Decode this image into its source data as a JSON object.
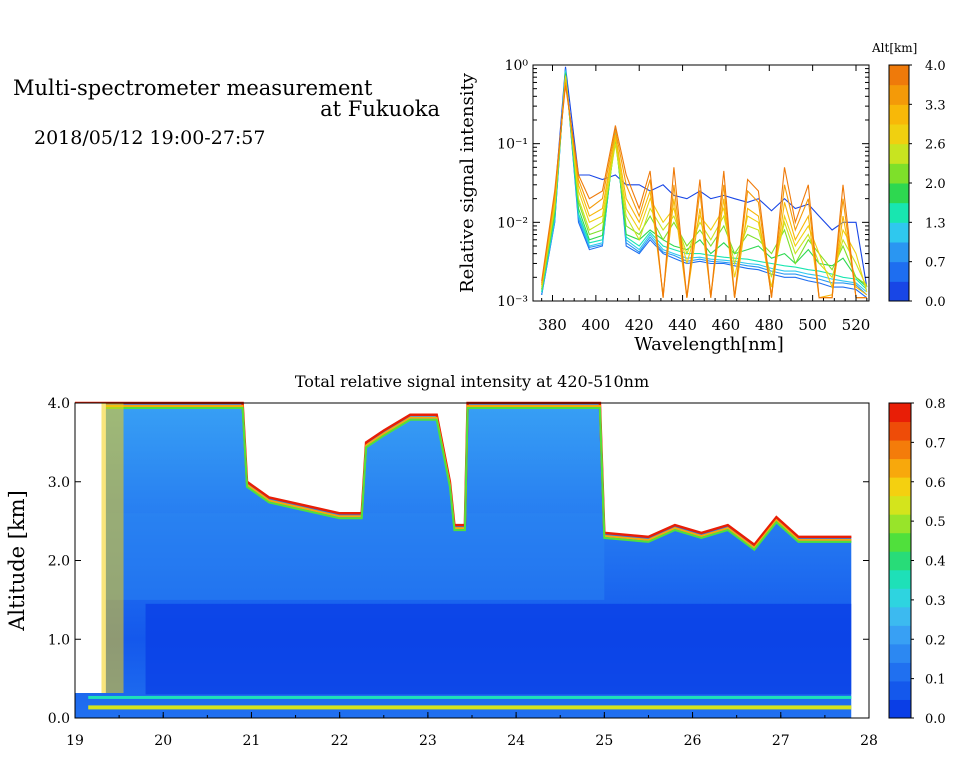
{
  "header": {
    "title_line1": "Multi-spectrometer measurement",
    "title_line2": "at Fukuoka",
    "timestamp": "2018/05/12 19:00-27:57"
  },
  "chart_data": [
    {
      "type": "line",
      "title": "",
      "xlabel": "Wavelength[nm]",
      "ylabel": "Relative signal intensity",
      "xlim": [
        371,
        526
      ],
      "ylim": [
        0.001,
        1
      ],
      "yscale": "log",
      "x_ticks": [
        380,
        400,
        420,
        440,
        460,
        480,
        500,
        520
      ],
      "y_ticks": [
        {
          "value": 0.001,
          "label": "10⁻³"
        },
        {
          "value": 0.01,
          "label": "10⁻²"
        },
        {
          "value": 0.1,
          "label": "10⁻¹"
        },
        {
          "value": 1,
          "label": "10⁰"
        }
      ],
      "x": [
        375,
        381,
        386,
        392,
        397,
        403,
        409,
        414,
        420,
        425,
        431,
        436,
        442,
        448,
        453,
        459,
        464,
        470,
        475,
        481,
        487,
        492,
        498,
        503,
        509,
        514,
        520,
        525
      ],
      "colorbar": {
        "label": "Alt[km]",
        "tick_labels": [
          "4.0",
          "3.3",
          "2.6",
          "2.0",
          "1.3",
          "0.7",
          "0.0"
        ],
        "range": [
          0,
          4
        ],
        "colors": [
          "#1846e6",
          "#1e6ef0",
          "#2a96f2",
          "#2fc8ee",
          "#18e6b0",
          "#2ed850",
          "#7ee02a",
          "#c8e420",
          "#f0d010",
          "#f8b808",
          "#f49a08",
          "#ef7a0a"
        ]
      },
      "series": [
        {
          "alt": 0.2,
          "color": "#1846e6",
          "values": [
            0.0012,
            0.02,
            0.95,
            0.04,
            0.04,
            0.035,
            0.04,
            0.03,
            0.03,
            0.025,
            0.03,
            0.022,
            0.02,
            0.025,
            0.02,
            0.022,
            0.02,
            0.018,
            0.02,
            0.014,
            0.02,
            0.015,
            0.017,
            0.012,
            0.008,
            0.01,
            0.01,
            0.0015
          ]
        },
        {
          "alt": 0.5,
          "color": "#1e6ef0",
          "values": [
            0.0012,
            0.01,
            0.9,
            0.01,
            0.0045,
            0.005,
            0.16,
            0.005,
            0.004,
            0.006,
            0.004,
            0.0035,
            0.003,
            0.0032,
            0.003,
            0.003,
            0.0028,
            0.0026,
            0.0025,
            0.0022,
            0.002,
            0.002,
            0.0018,
            0.0017,
            0.0015,
            0.0015,
            0.0014,
            0.0011
          ]
        },
        {
          "alt": 0.9,
          "color": "#2a96f2",
          "values": [
            0.0012,
            0.01,
            0.88,
            0.011,
            0.0048,
            0.0052,
            0.15,
            0.0055,
            0.0042,
            0.0065,
            0.0042,
            0.0038,
            0.0032,
            0.0034,
            0.0032,
            0.0031,
            0.003,
            0.0028,
            0.0027,
            0.0024,
            0.0022,
            0.0022,
            0.002,
            0.0019,
            0.0017,
            0.0017,
            0.0016,
            0.0012
          ]
        },
        {
          "alt": 1.2,
          "color": "#2fc8ee",
          "values": [
            0.0013,
            0.011,
            0.85,
            0.012,
            0.005,
            0.0055,
            0.14,
            0.006,
            0.0045,
            0.007,
            0.0045,
            0.004,
            0.0035,
            0.0036,
            0.0034,
            0.0033,
            0.0032,
            0.003,
            0.0029,
            0.0026,
            0.0024,
            0.0024,
            0.0022,
            0.0021,
            0.0019,
            0.0018,
            0.0017,
            0.0013
          ]
        },
        {
          "alt": 1.6,
          "color": "#18e6b0",
          "values": [
            0.0013,
            0.012,
            0.82,
            0.013,
            0.0055,
            0.006,
            0.13,
            0.0065,
            0.005,
            0.0075,
            0.005,
            0.0045,
            0.004,
            0.004,
            0.0038,
            0.0036,
            0.0035,
            0.0034,
            0.0032,
            0.003,
            0.0028,
            0.0027,
            0.0025,
            0.0024,
            0.0022,
            0.002,
            0.0019,
            0.0014
          ]
        },
        {
          "alt": 2.0,
          "color": "#2ed850",
          "values": [
            0.0014,
            0.013,
            0.78,
            0.015,
            0.006,
            0.0068,
            0.12,
            0.007,
            0.006,
            0.008,
            0.006,
            0.005,
            0.0045,
            0.006,
            0.004,
            0.0055,
            0.004,
            0.0045,
            0.005,
            0.0035,
            0.004,
            0.003,
            0.0045,
            0.003,
            0.0028,
            0.0035,
            0.002,
            0.0015
          ]
        },
        {
          "alt": 2.3,
          "color": "#7ee02a",
          "values": [
            0.0014,
            0.014,
            0.75,
            0.018,
            0.007,
            0.008,
            0.11,
            0.009,
            0.007,
            0.012,
            0.006,
            0.01,
            0.005,
            0.008,
            0.005,
            0.009,
            0.004,
            0.007,
            0.006,
            0.004,
            0.008,
            0.003,
            0.006,
            0.004,
            0.0025,
            0.005,
            0.002,
            0.0016
          ]
        },
        {
          "alt": 2.6,
          "color": "#c8e420",
          "values": [
            0.0015,
            0.016,
            0.72,
            0.02,
            0.008,
            0.01,
            0.1,
            0.012,
            0.006,
            0.015,
            0.008,
            0.012,
            0.004,
            0.01,
            0.006,
            0.012,
            0.003,
            0.009,
            0.008,
            0.002,
            0.01,
            0.004,
            0.007,
            0.003,
            0.002,
            0.006,
            0.003,
            0.0015
          ]
        },
        {
          "alt": 3.0,
          "color": "#f0d010",
          "values": [
            0.0016,
            0.018,
            0.7,
            0.025,
            0.01,
            0.012,
            0.12,
            0.015,
            0.008,
            0.02,
            0.01,
            0.015,
            0.003,
            0.012,
            0.008,
            0.015,
            0.002,
            0.012,
            0.01,
            0.0015,
            0.012,
            0.005,
            0.009,
            0.004,
            0.0015,
            0.008,
            0.004,
            0.0013
          ]
        },
        {
          "alt": 3.3,
          "color": "#f8b808",
          "values": [
            0.0016,
            0.02,
            0.65,
            0.03,
            0.012,
            0.015,
            0.13,
            0.02,
            0.01,
            0.025,
            0.0012,
            0.02,
            0.0011,
            0.015,
            0.0012,
            0.02,
            0.0011,
            0.015,
            0.012,
            0.0012,
            0.018,
            0.006,
            0.012,
            0.0011,
            0.0012,
            0.012,
            0.0015,
            0.0012
          ]
        },
        {
          "alt": 3.6,
          "color": "#f49a08",
          "values": [
            0.0017,
            0.022,
            0.6,
            0.035,
            0.015,
            0.02,
            0.15,
            0.03,
            0.012,
            0.035,
            0.0011,
            0.03,
            0.0011,
            0.025,
            0.0011,
            0.03,
            0.0011,
            0.025,
            0.018,
            0.0011,
            0.03,
            0.008,
            0.02,
            0.0011,
            0.0011,
            0.02,
            0.0011,
            0.0011
          ]
        },
        {
          "alt": 3.9,
          "color": "#ef7a0a",
          "values": [
            0.0018,
            0.025,
            0.55,
            0.04,
            0.02,
            0.025,
            0.17,
            0.04,
            0.015,
            0.045,
            0.0011,
            0.05,
            0.0011,
            0.035,
            0.0011,
            0.045,
            0.0011,
            0.035,
            0.025,
            0.0011,
            0.05,
            0.01,
            0.03,
            0.0011,
            0.0011,
            0.03,
            0.0011,
            0.0011
          ]
        }
      ]
    },
    {
      "type": "heatmap",
      "title": "Total relative signal intensity at 420-510nm",
      "xlabel": "",
      "ylabel": "Altitude [km]",
      "xlim": [
        19,
        28
      ],
      "ylim": [
        0,
        4
      ],
      "x_ticks": [
        19,
        20,
        21,
        22,
        23,
        24,
        25,
        26,
        27,
        28
      ],
      "y_ticks": [
        {
          "value": 0,
          "label": "0.0"
        },
        {
          "value": 1,
          "label": "1.0"
        },
        {
          "value": 2,
          "label": "2.0"
        },
        {
          "value": 3,
          "label": "3.0"
        },
        {
          "value": 4,
          "label": "4.0"
        }
      ],
      "data_end_hour": 27.8,
      "colorbar": {
        "range": [
          0,
          0.8
        ],
        "tick_labels": [
          "0.8",
          "0.7",
          "0.6",
          "0.5",
          "0.4",
          "0.3",
          "0.2",
          "0.1",
          "0.0"
        ],
        "colors": [
          "#0a3ee6",
          "#1458ec",
          "#2070f0",
          "#2c88f2",
          "#38a0f4",
          "#3cbaf0",
          "#2ed4e0",
          "#1ee0b8",
          "#28dc78",
          "#50e03c",
          "#98e42a",
          "#d4e41c",
          "#f4d010",
          "#f8a80c",
          "#f47c0a",
          "#ee4c08",
          "#e81e06"
        ]
      },
      "cloud_top_km": [
        {
          "hour": 19.0,
          "alt": 4.0
        },
        {
          "hour": 20.9,
          "alt": 4.0
        },
        {
          "hour": 20.95,
          "alt": 3.0
        },
        {
          "hour": 21.2,
          "alt": 2.8
        },
        {
          "hour": 21.6,
          "alt": 2.7
        },
        {
          "hour": 22.0,
          "alt": 2.6
        },
        {
          "hour": 22.25,
          "alt": 2.6
        },
        {
          "hour": 22.3,
          "alt": 3.5
        },
        {
          "hour": 22.5,
          "alt": 3.65
        },
        {
          "hour": 22.8,
          "alt": 3.85
        },
        {
          "hour": 23.1,
          "alt": 3.85
        },
        {
          "hour": 23.25,
          "alt": 3.0
        },
        {
          "hour": 23.3,
          "alt": 2.45
        },
        {
          "hour": 23.42,
          "alt": 2.45
        },
        {
          "hour": 23.45,
          "alt": 4.0
        },
        {
          "hour": 24.95,
          "alt": 4.0
        },
        {
          "hour": 25.0,
          "alt": 2.35
        },
        {
          "hour": 25.5,
          "alt": 2.3
        },
        {
          "hour": 25.8,
          "alt": 2.45
        },
        {
          "hour": 26.1,
          "alt": 2.35
        },
        {
          "hour": 26.4,
          "alt": 2.45
        },
        {
          "hour": 26.7,
          "alt": 2.2
        },
        {
          "hour": 26.95,
          "alt": 2.55
        },
        {
          "hour": 27.2,
          "alt": 2.3
        },
        {
          "hour": 27.8,
          "alt": 2.3
        }
      ]
    }
  ]
}
